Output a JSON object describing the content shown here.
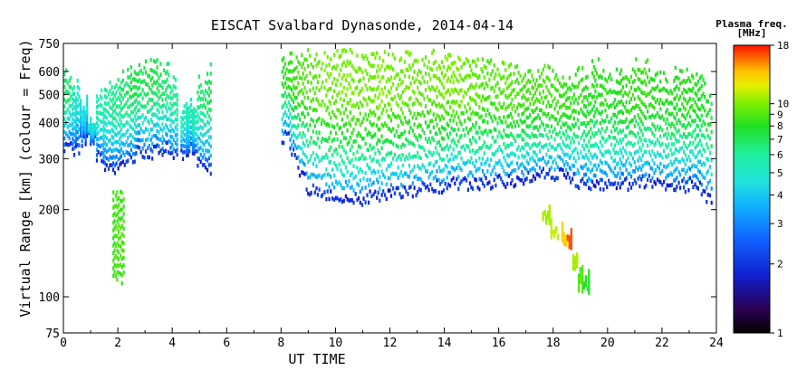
{
  "chart_data": {
    "type": "scatter",
    "title": "EISCAT Svalbard Dynasonde, 2014-04-14",
    "xlabel": "UT TIME",
    "ylabel": "Virtual Range [km] (colour = Freq)",
    "xlim": [
      0,
      24
    ],
    "ylim": [
      75,
      750
    ],
    "y_scale": "log",
    "x_ticks": [
      "0",
      "2",
      "4",
      "6",
      "8",
      "10",
      "12",
      "14",
      "16",
      "18",
      "20",
      "22",
      "24"
    ],
    "y_ticks": [
      "75",
      "100",
      "200",
      "300",
      "400",
      "500",
      "600",
      "750"
    ],
    "grid": false,
    "colorbar": {
      "title": "Plasma freq.",
      "unit": "[MHz]",
      "scale": "log",
      "range": [
        1,
        18
      ],
      "ticks": [
        "1",
        "2",
        "3",
        "4",
        "5",
        "6",
        "7",
        "8",
        "9",
        "10",
        "18"
      ]
    },
    "series": [
      {
        "note_color_range": "blue to green",
        "points": [
          [
            0.0,
            330,
            600,
            4.0
          ],
          [
            0.3,
            330,
            540,
            3.4
          ],
          [
            0.6,
            350,
            480,
            3.2
          ],
          [
            0.9,
            360,
            420,
            3.3
          ],
          [
            1.2,
            310,
            500,
            3.6
          ],
          [
            1.5,
            290,
            560,
            3.7
          ],
          [
            1.8,
            280,
            560,
            3.9
          ],
          [
            2.1,
            300,
            590,
            4.0
          ],
          [
            2.4,
            310,
            610,
            4.2
          ],
          [
            2.7,
            320,
            640,
            4.1
          ],
          [
            3.0,
            320,
            650,
            4.3
          ],
          [
            3.3,
            330,
            640,
            4.2
          ],
          [
            3.6,
            330,
            620,
            4.0
          ],
          [
            3.9,
            320,
            560,
            3.8
          ],
          [
            4.3,
            320,
            450,
            3.5
          ],
          [
            4.6,
            330,
            470,
            3.6
          ],
          [
            4.9,
            300,
            560,
            3.9
          ],
          [
            5.2,
            280,
            620,
            4.1
          ]
        ]
      },
      {
        "note_color_range": "blue to green",
        "points": [
          [
            8.0,
            360,
            680,
            4.6
          ],
          [
            8.3,
            320,
            680,
            4.8
          ],
          [
            8.6,
            280,
            700,
            5.0
          ],
          [
            8.9,
            240,
            700,
            5.0
          ],
          [
            9.2,
            230,
            690,
            5.2
          ],
          [
            9.5,
            230,
            680,
            5.3
          ],
          [
            9.8,
            225,
            690,
            5.3
          ],
          [
            10.1,
            220,
            700,
            5.4
          ],
          [
            10.4,
            220,
            690,
            5.4
          ],
          [
            10.7,
            220,
            680,
            5.3
          ],
          [
            11.0,
            225,
            670,
            5.3
          ],
          [
            11.3,
            225,
            690,
            5.4
          ],
          [
            11.6,
            225,
            700,
            5.5
          ],
          [
            11.9,
            230,
            690,
            5.4
          ],
          [
            12.2,
            230,
            660,
            5.3
          ],
          [
            12.5,
            235,
            680,
            5.4
          ],
          [
            12.8,
            235,
            670,
            5.3
          ],
          [
            13.1,
            240,
            660,
            5.2
          ],
          [
            13.4,
            240,
            690,
            5.3
          ],
          [
            13.7,
            245,
            680,
            5.3
          ],
          [
            14.0,
            245,
            700,
            5.4
          ],
          [
            14.3,
            250,
            690,
            5.4
          ],
          [
            14.6,
            250,
            680,
            5.3
          ],
          [
            14.9,
            250,
            660,
            5.2
          ],
          [
            15.2,
            250,
            650,
            5.1
          ],
          [
            15.5,
            250,
            640,
            5.0
          ],
          [
            15.8,
            255,
            620,
            5.0
          ],
          [
            16.1,
            255,
            640,
            5.1
          ],
          [
            16.4,
            255,
            620,
            5.0
          ],
          [
            16.7,
            255,
            600,
            4.9
          ],
          [
            17.0,
            260,
            590,
            4.9
          ],
          [
            17.3,
            265,
            600,
            4.9
          ],
          [
            17.6,
            270,
            620,
            5.0
          ],
          [
            17.9,
            270,
            600,
            4.9
          ],
          [
            18.2,
            270,
            590,
            4.8
          ],
          [
            18.5,
            260,
            580,
            4.7
          ],
          [
            18.8,
            250,
            600,
            4.7
          ],
          [
            19.1,
            245,
            560,
            4.6
          ],
          [
            19.4,
            245,
            640,
            4.6
          ],
          [
            19.7,
            245,
            610,
            4.6
          ],
          [
            20.0,
            250,
            570,
            4.5
          ],
          [
            20.3,
            250,
            600,
            4.6
          ],
          [
            20.6,
            250,
            620,
            4.7
          ],
          [
            20.9,
            255,
            650,
            4.8
          ],
          [
            21.2,
            255,
            640,
            4.8
          ],
          [
            21.5,
            255,
            590,
            4.6
          ],
          [
            21.8,
            255,
            580,
            4.6
          ],
          [
            22.1,
            250,
            560,
            4.5
          ],
          [
            22.4,
            250,
            600,
            4.6
          ],
          [
            22.7,
            245,
            620,
            4.7
          ],
          [
            23.0,
            250,
            590,
            4.6
          ],
          [
            23.3,
            240,
            560,
            4.5
          ],
          [
            23.6,
            225,
            500,
            4.3
          ]
        ]
      },
      {
        "note_color_range": "green Es trace",
        "points": [
          [
            1.8,
            120,
            230,
            4.8
          ],
          [
            1.9,
            115,
            250,
            5.0
          ],
          [
            2.0,
            118,
            230,
            4.9
          ]
        ]
      },
      {
        "note_color_range": "green/orange trace",
        "points": [
          [
            17.6,
            190,
            200,
            6.0
          ],
          [
            17.9,
            170,
            180,
            6.5
          ],
          [
            18.3,
            160,
            175,
            8.0
          ],
          [
            18.5,
            155,
            165,
            14.0
          ],
          [
            18.7,
            130,
            145,
            6.0
          ],
          [
            18.9,
            110,
            125,
            5.0
          ],
          [
            19.1,
            108,
            120,
            4.5
          ]
        ]
      }
    ]
  }
}
